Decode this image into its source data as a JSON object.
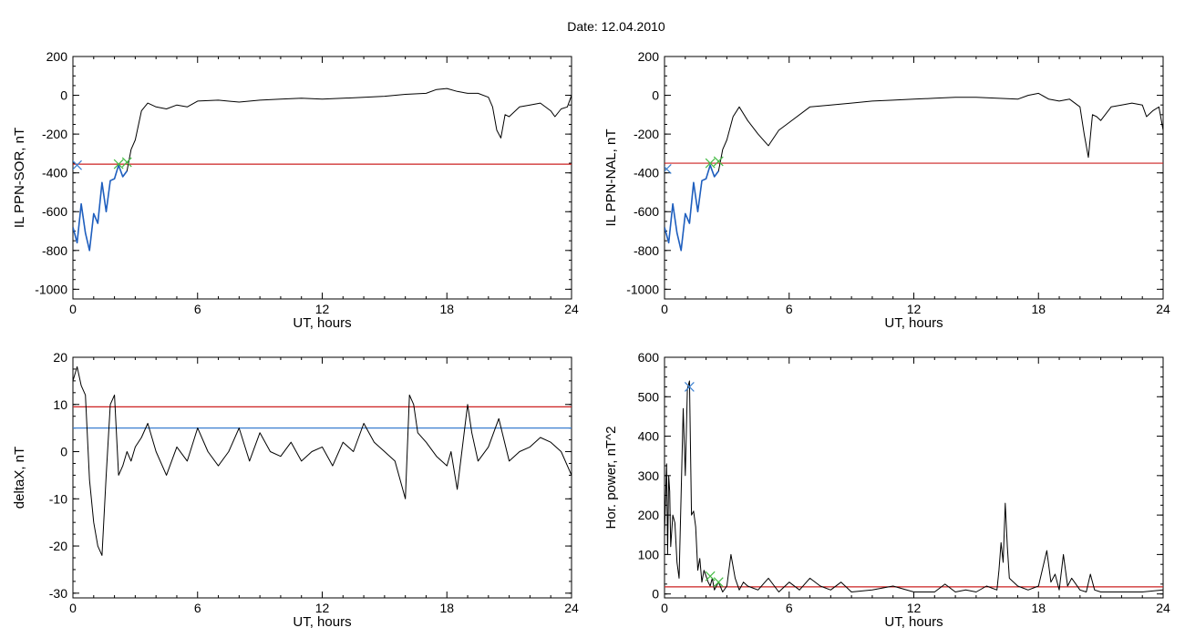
{
  "header": {
    "title": "Date:  12.04.2010"
  },
  "colors": {
    "axis": "#000000",
    "trace": "#000000",
    "threshold_red": "#cc2020",
    "threshold_blue": "#3a7fd0",
    "highlight_blue": "#1f5fbf",
    "marker_green": "#44bb44",
    "marker_blue": "#3a7fd0"
  },
  "chart_data": [
    {
      "id": "p1",
      "type": "line",
      "ylabel": "IL PPN-SOR, nT",
      "xlabel": "UT, hours",
      "xlim": [
        0,
        24
      ],
      "ylim": [
        -1050,
        200
      ],
      "xticks": [
        0,
        6,
        12,
        18,
        24
      ],
      "yticks": [
        200,
        0,
        -200,
        -400,
        -600,
        -800,
        -1000
      ],
      "grid": false,
      "series": [
        {
          "role": "signal",
          "color": "#000000",
          "x": [
            0,
            0.2,
            0.4,
            0.6,
            0.8,
            1.0,
            1.2,
            1.4,
            1.6,
            1.8,
            2.0,
            2.2,
            2.4,
            2.6,
            2.8,
            3.0,
            3.3,
            3.6,
            4.0,
            4.5,
            5.0,
            5.5,
            6.0,
            7,
            8,
            9,
            10,
            11,
            12,
            13,
            14,
            15,
            16,
            17,
            17.5,
            18,
            18.5,
            19,
            19.5,
            20,
            20.2,
            20.4,
            20.6,
            20.8,
            21,
            21.5,
            22,
            22.5,
            23,
            23.2,
            23.5,
            23.8,
            24
          ],
          "y": [
            -680,
            -760,
            -560,
            -710,
            -800,
            -610,
            -660,
            -450,
            -600,
            -440,
            -430,
            -360,
            -420,
            -390,
            -280,
            -230,
            -80,
            -40,
            -60,
            -70,
            -50,
            -60,
            -30,
            -25,
            -35,
            -25,
            -20,
            -15,
            -20,
            -15,
            -10,
            -5,
            5,
            10,
            30,
            35,
            20,
            10,
            10,
            -10,
            -60,
            -180,
            -220,
            -100,
            -110,
            -60,
            -50,
            -40,
            -80,
            -110,
            -70,
            -60,
            0
          ]
        },
        {
          "role": "highlight",
          "color": "#1f5fbf",
          "x": [
            0,
            0.2,
            0.4,
            0.6,
            0.8,
            1.0,
            1.2,
            1.4,
            1.6,
            1.8,
            2.0,
            2.2,
            2.4,
            2.6
          ],
          "y": [
            -680,
            -760,
            -560,
            -710,
            -800,
            -610,
            -660,
            -450,
            -600,
            -440,
            -430,
            -360,
            -420,
            -390
          ]
        }
      ],
      "thresholds": [
        {
          "y": -355,
          "color": "#cc2020"
        }
      ],
      "markers": [
        {
          "x": 2.2,
          "y": -355,
          "symbol": "x",
          "color": "#44bb44"
        },
        {
          "x": 2.6,
          "y": -345,
          "symbol": "x",
          "color": "#44bb44"
        },
        {
          "x": 0.2,
          "y": -360,
          "symbol": "x",
          "color": "#3a7fd0"
        }
      ]
    },
    {
      "id": "p2",
      "type": "line",
      "ylabel": "IL PPN-NAL, nT",
      "xlabel": "UT, hours",
      "xlim": [
        0,
        24
      ],
      "ylim": [
        -1050,
        200
      ],
      "xticks": [
        0,
        6,
        12,
        18,
        24
      ],
      "yticks": [
        200,
        0,
        -200,
        -400,
        -600,
        -800,
        -1000
      ],
      "grid": false,
      "series": [
        {
          "role": "signal",
          "color": "#000000",
          "x": [
            0,
            0.2,
            0.4,
            0.6,
            0.8,
            1.0,
            1.2,
            1.4,
            1.6,
            1.8,
            2.0,
            2.2,
            2.4,
            2.6,
            2.8,
            3.0,
            3.3,
            3.6,
            4.0,
            4.5,
            5.0,
            5.5,
            6.0,
            7,
            8,
            9,
            10,
            11,
            12,
            13,
            14,
            15,
            16,
            17,
            17.5,
            18,
            18.5,
            19,
            19.5,
            20,
            20.2,
            20.4,
            20.6,
            20.8,
            21,
            21.5,
            22,
            22.5,
            23,
            23.2,
            23.5,
            23.8,
            24
          ],
          "y": [
            -680,
            -760,
            -560,
            -710,
            -800,
            -610,
            -660,
            -450,
            -600,
            -440,
            -430,
            -360,
            -420,
            -390,
            -280,
            -230,
            -110,
            -60,
            -130,
            -200,
            -260,
            -180,
            -140,
            -60,
            -50,
            -40,
            -30,
            -25,
            -20,
            -15,
            -10,
            -10,
            -15,
            -20,
            0,
            10,
            -20,
            -30,
            -20,
            -60,
            -200,
            -320,
            -100,
            -110,
            -130,
            -60,
            -50,
            -40,
            -50,
            -110,
            -80,
            -60,
            -180
          ]
        },
        {
          "role": "highlight",
          "color": "#1f5fbf",
          "x": [
            0,
            0.2,
            0.4,
            0.6,
            0.8,
            1.0,
            1.2,
            1.4,
            1.6,
            1.8,
            2.0,
            2.2,
            2.4,
            2.6
          ],
          "y": [
            -680,
            -760,
            -560,
            -710,
            -800,
            -610,
            -660,
            -450,
            -600,
            -440,
            -430,
            -360,
            -420,
            -390
          ]
        }
      ],
      "thresholds": [
        {
          "y": -350,
          "color": "#cc2020"
        }
      ],
      "markers": [
        {
          "x": 2.2,
          "y": -350,
          "symbol": "x",
          "color": "#44bb44"
        },
        {
          "x": 2.6,
          "y": -340,
          "symbol": "x",
          "color": "#44bb44"
        },
        {
          "x": 0.1,
          "y": -380,
          "symbol": "x",
          "color": "#3a7fd0"
        }
      ]
    },
    {
      "id": "p3",
      "type": "line",
      "ylabel": "deltaX, nT",
      "xlabel": "UT, hours",
      "xlim": [
        0,
        24
      ],
      "ylim": [
        -31,
        20
      ],
      "xticks": [
        0,
        6,
        12,
        18,
        24
      ],
      "yticks": [
        20,
        10,
        0,
        -10,
        -20,
        -30
      ],
      "grid": false,
      "series": [
        {
          "role": "signal",
          "color": "#000000",
          "x": [
            0,
            0.2,
            0.4,
            0.6,
            0.8,
            1.0,
            1.2,
            1.4,
            1.6,
            1.8,
            2.0,
            2.2,
            2.4,
            2.6,
            2.8,
            3.0,
            3.3,
            3.6,
            4.0,
            4.5,
            5.0,
            5.5,
            6.0,
            6.5,
            7,
            7.5,
            8,
            8.5,
            9,
            9.5,
            10,
            10.5,
            11,
            11.5,
            12,
            12.5,
            13,
            13.5,
            14,
            14.5,
            15,
            15.5,
            16,
            16.2,
            16.4,
            16.6,
            17,
            17.5,
            18,
            18.2,
            18.5,
            19,
            19.2,
            19.5,
            20,
            20.5,
            21,
            21.5,
            22,
            22.5,
            23,
            23.5,
            24
          ],
          "y": [
            15,
            18,
            14,
            12,
            -6,
            -15,
            -20,
            -22,
            -5,
            10,
            12,
            -5,
            -3,
            0,
            -2,
            1,
            3,
            6,
            0,
            -5,
            1,
            -2,
            5,
            0,
            -3,
            0,
            5,
            -2,
            4,
            0,
            -1,
            2,
            -2,
            0,
            1,
            -3,
            2,
            0,
            6,
            2,
            0,
            -2,
            -10,
            12,
            10,
            4,
            2,
            -1,
            -3,
            0,
            -8,
            10,
            4,
            -2,
            1,
            7,
            -2,
            0,
            1,
            3,
            2,
            0,
            -5
          ]
        }
      ],
      "thresholds": [
        {
          "y": 9.5,
          "color": "#cc2020"
        },
        {
          "y": 5,
          "color": "#3a7fd0"
        }
      ],
      "markers": []
    },
    {
      "id": "p4",
      "type": "line",
      "ylabel": "Hor. power, nT^2",
      "xlabel": "UT, hours",
      "xlim": [
        0,
        24
      ],
      "ylim": [
        -10,
        600
      ],
      "xticks": [
        0,
        6,
        12,
        18,
        24
      ],
      "yticks": [
        600,
        500,
        400,
        300,
        200,
        100,
        0
      ],
      "grid": false,
      "series": [
        {
          "role": "signal",
          "color": "#000000",
          "x": [
            0,
            0.05,
            0.1,
            0.15,
            0.2,
            0.25,
            0.3,
            0.4,
            0.5,
            0.6,
            0.7,
            0.8,
            0.9,
            1.0,
            1.1,
            1.2,
            1.3,
            1.4,
            1.5,
            1.6,
            1.7,
            1.8,
            1.9,
            2.0,
            2.1,
            2.2,
            2.3,
            2.4,
            2.6,
            2.8,
            3.0,
            3.2,
            3.4,
            3.6,
            3.8,
            4.0,
            4.5,
            5.0,
            5.5,
            6.0,
            6.5,
            7,
            7.5,
            8,
            8.5,
            9,
            10,
            11,
            12,
            13,
            13.5,
            14,
            14.5,
            15,
            15.5,
            16,
            16.1,
            16.2,
            16.3,
            16.4,
            16.5,
            16.6,
            17,
            17.5,
            18,
            18.4,
            18.6,
            18.8,
            19,
            19.2,
            19.4,
            19.6,
            20,
            20.3,
            20.5,
            20.7,
            21,
            22,
            23,
            24
          ],
          "y": [
            150,
            240,
            330,
            100,
            300,
            260,
            120,
            200,
            180,
            80,
            40,
            250,
            470,
            300,
            520,
            540,
            200,
            210,
            170,
            60,
            90,
            30,
            60,
            45,
            30,
            20,
            40,
            10,
            30,
            5,
            20,
            100,
            40,
            10,
            30,
            20,
            10,
            40,
            5,
            30,
            10,
            40,
            20,
            10,
            30,
            5,
            10,
            20,
            5,
            5,
            25,
            5,
            10,
            5,
            20,
            10,
            60,
            130,
            80,
            230,
            120,
            40,
            20,
            10,
            20,
            110,
            30,
            50,
            10,
            100,
            20,
            40,
            10,
            5,
            50,
            10,
            5,
            5,
            5,
            10
          ]
        }
      ],
      "thresholds": [
        {
          "y": 18,
          "color": "#cc2020"
        }
      ],
      "markers": [
        {
          "x": 1.2,
          "y": 525,
          "symbol": "x",
          "color": "#3a7fd0"
        },
        {
          "x": 2.2,
          "y": 45,
          "symbol": "x",
          "color": "#44bb44"
        },
        {
          "x": 2.6,
          "y": 30,
          "symbol": "x",
          "color": "#44bb44"
        }
      ]
    }
  ]
}
